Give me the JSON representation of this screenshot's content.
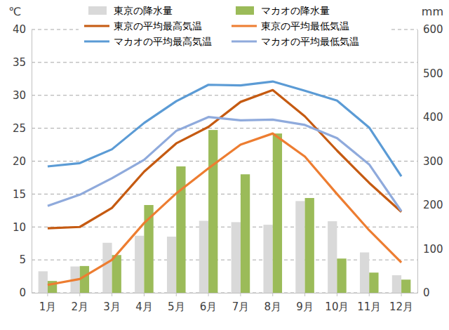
{
  "chart_data": {
    "type": "bar",
    "ylabel": "℃",
    "y2label": "mm",
    "categories": [
      "1月",
      "2月",
      "3月",
      "4月",
      "5月",
      "6月",
      "7月",
      "8月",
      "9月",
      "10月",
      "11月",
      "12月"
    ],
    "ylim": [
      0,
      40
    ],
    "yticks": [
      0,
      5,
      10,
      15,
      20,
      25,
      30,
      35,
      40
    ],
    "y2lim": [
      0,
      600
    ],
    "y2ticks": [
      0,
      100,
      200,
      300,
      400,
      500,
      600
    ],
    "grid": true,
    "legend": "top",
    "series": [
      {
        "name": "東京の降水量",
        "type": "bar",
        "axis": "y2",
        "color": "#d9d9d9",
        "values": [
          49,
          60,
          114,
          130,
          128,
          164,
          161,
          155,
          209,
          163,
          92,
          40
        ]
      },
      {
        "name": "マカオの降水量",
        "type": "bar",
        "axis": "y2",
        "color": "#9bbb59",
        "values": [
          27,
          61,
          86,
          200,
          288,
          371,
          270,
          363,
          216,
          78,
          46,
          30
        ]
      },
      {
        "name": "東京の平均最高気温",
        "type": "line",
        "color": "#c55a11",
        "values": [
          9.8,
          10.0,
          12.9,
          18.4,
          22.7,
          25.2,
          29.0,
          30.8,
          26.8,
          21.6,
          16.7,
          12.3
        ]
      },
      {
        "name": "東京の平均最低気温",
        "type": "line",
        "color": "#ed7d31",
        "values": [
          1.2,
          2.1,
          5.0,
          10.6,
          15.1,
          18.9,
          22.5,
          24.2,
          20.7,
          15.0,
          9.5,
          4.6
        ]
      },
      {
        "name": "マカオの平均最高気温",
        "type": "line",
        "color": "#5b9bd5",
        "values": [
          19.2,
          19.7,
          21.8,
          25.8,
          29.1,
          31.6,
          31.5,
          32.1,
          30.7,
          29.2,
          25.1,
          17.7
        ]
      },
      {
        "name": "マカオの平均最低気温",
        "type": "line",
        "color": "#8faadc",
        "values": [
          13.2,
          14.9,
          17.4,
          20.2,
          24.6,
          26.7,
          26.2,
          26.3,
          25.5,
          23.5,
          19.5,
          12.4
        ]
      }
    ]
  }
}
